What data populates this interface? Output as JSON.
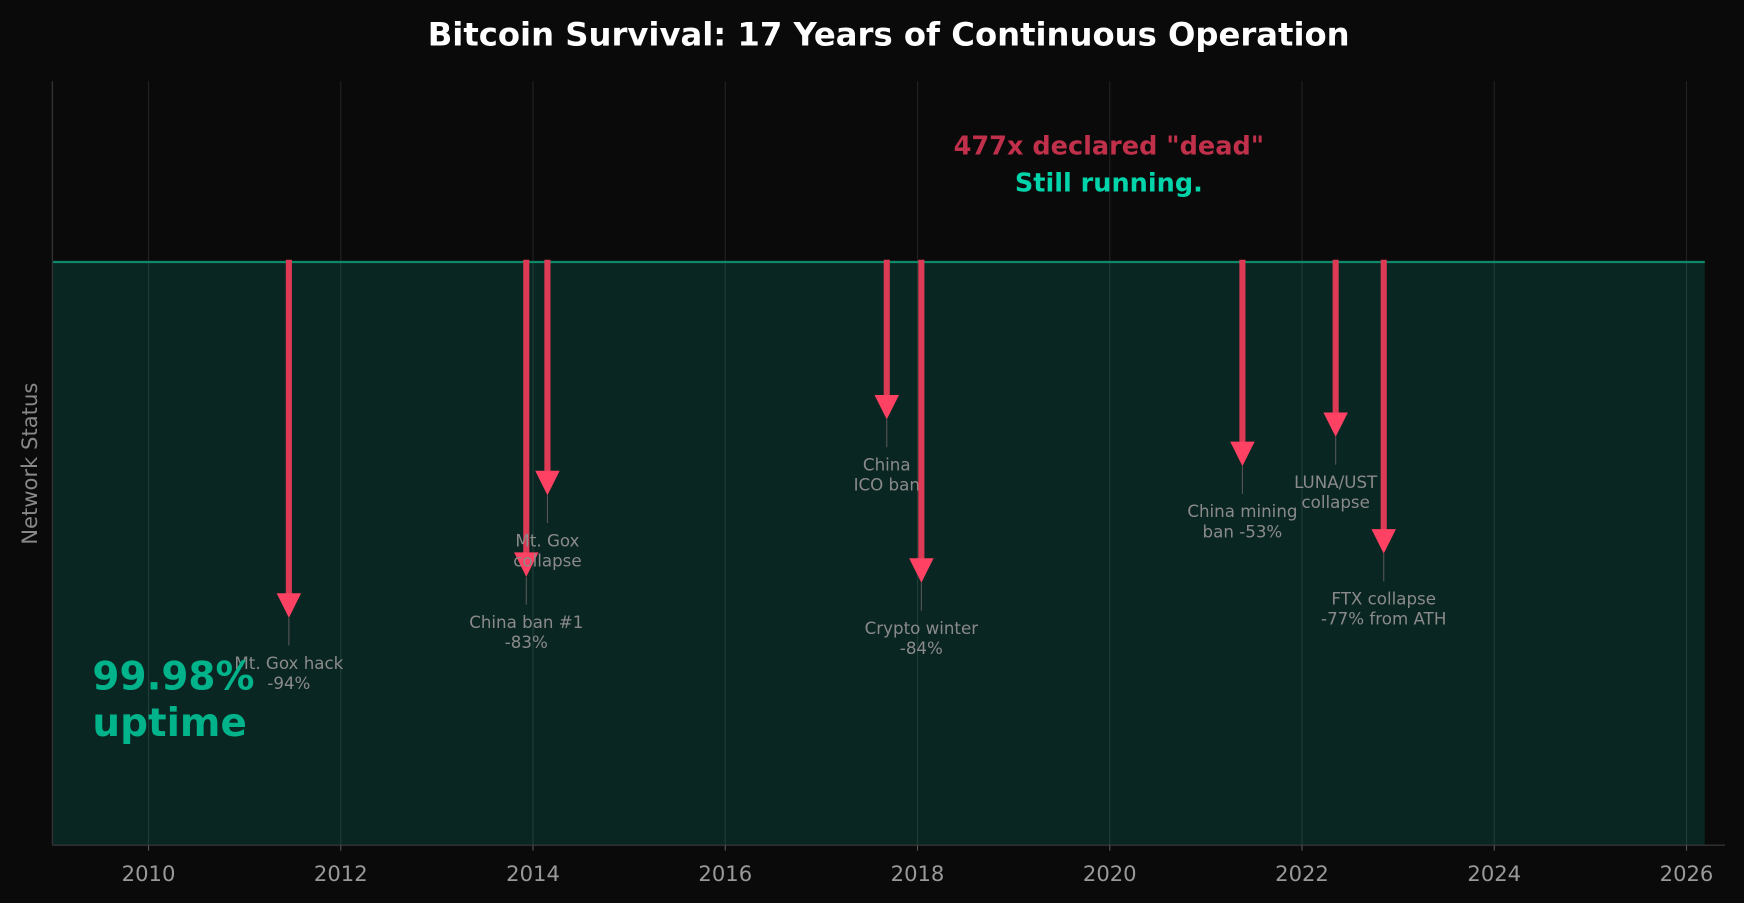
{
  "chart_data": {
    "type": "timeline",
    "title": "Bitcoin Survival: 17 Years of Continuous Operation",
    "ylabel": "Network Status",
    "xlabel": "",
    "xlim": [
      2009.0,
      2026.4
    ],
    "ylim": [
      0,
      1.31
    ],
    "x_ticks": [
      2010,
      2012,
      2014,
      2016,
      2018,
      2020,
      2022,
      2024,
      2026
    ],
    "status_line": {
      "value": 1.0,
      "x_start": 2009.0,
      "x_end": 2026.19
    },
    "grid": "vertical",
    "events": [
      {
        "date": 2011.46,
        "arrow_end": 0.39,
        "label": "Mt. Gox hack\n-94%"
      },
      {
        "date": 2013.93,
        "arrow_end": 0.46,
        "label": "China ban #1\n-83%"
      },
      {
        "date": 2014.15,
        "arrow_end": 0.6,
        "label": "Mt. Gox\ncollapse"
      },
      {
        "date": 2017.68,
        "arrow_end": 0.73,
        "label": "China\nICO ban"
      },
      {
        "date": 2018.04,
        "arrow_end": 0.45,
        "label": "Crypto winter\n-84%"
      },
      {
        "date": 2021.38,
        "arrow_end": 0.65,
        "label": "China mining\nban -53%"
      },
      {
        "date": 2022.35,
        "arrow_end": 0.7,
        "label": "LUNA/UST\ncollapse"
      },
      {
        "date": 2022.85,
        "arrow_end": 0.5,
        "label": "FTX collapse\n-77% from ATH"
      }
    ],
    "annotations": {
      "dead_count": "477x declared \"dead\"",
      "still_running": "Still running.",
      "uptime_value": "99.98%",
      "uptime_label": "uptime"
    },
    "colors": {
      "background": "#0a0a0a",
      "fill": "#0a2622",
      "status_line": "#0e8a6a",
      "arrow": "#dc3a55",
      "arrow_head": "#ff4263",
      "dead_text": "#c0304a",
      "running_text": "#00d4aa",
      "uptime_text": "#00b38a",
      "event_label": "#8a8a8a"
    }
  }
}
